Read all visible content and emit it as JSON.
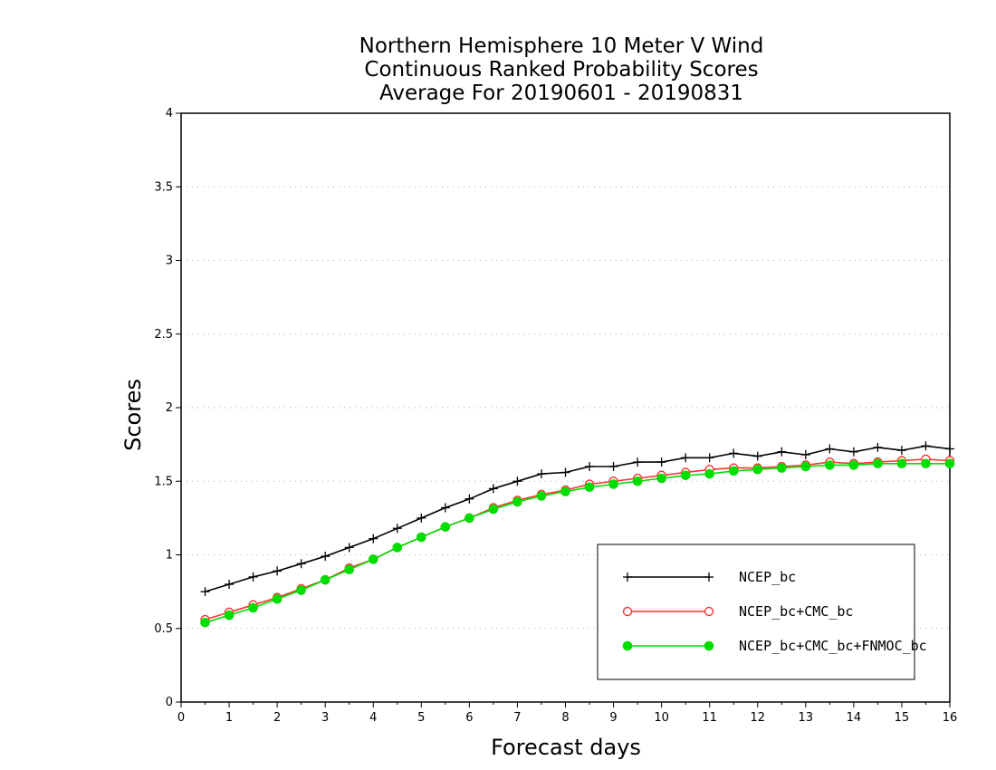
{
  "chart_data": {
    "type": "line",
    "title_lines": [
      "Northern Hemisphere 10 Meter V Wind",
      "Continuous Ranked Probability Scores",
      "Average For 20190601 - 20190831"
    ],
    "xlabel": "Forecast days",
    "ylabel": "Scores",
    "xlim": [
      0,
      16
    ],
    "ylim": [
      0,
      4
    ],
    "xticks": [
      "0",
      "1",
      "2",
      "3",
      "4",
      "5",
      "6",
      "7",
      "8",
      "9",
      "10",
      "11",
      "12",
      "13",
      "14",
      "15",
      "16"
    ],
    "yticks": [
      "0",
      "0.5",
      "1",
      "1.5",
      "2",
      "2.5",
      "3",
      "3.5",
      "4"
    ],
    "grid": "horizontal dotted",
    "legend_position": "bottom-right",
    "x": [
      0.5,
      1,
      1.5,
      2,
      2.5,
      3,
      3.5,
      4,
      4.5,
      5,
      5.5,
      6,
      6.5,
      7,
      7.5,
      8,
      8.5,
      9,
      9.5,
      10,
      10.5,
      11,
      11.5,
      12,
      12.5,
      13,
      13.5,
      14,
      14.5,
      15,
      15.5,
      16
    ],
    "series": [
      {
        "name": "NCEP_bc",
        "color": "#000000",
        "marker": "plus",
        "values": [
          0.75,
          0.8,
          0.85,
          0.89,
          0.94,
          0.99,
          1.05,
          1.11,
          1.18,
          1.25,
          1.32,
          1.38,
          1.45,
          1.5,
          1.55,
          1.56,
          1.6,
          1.6,
          1.63,
          1.63,
          1.66,
          1.66,
          1.69,
          1.67,
          1.7,
          1.68,
          1.72,
          1.7,
          1.73,
          1.71,
          1.74,
          1.72
        ]
      },
      {
        "name": "NCEP_bc+CMC_bc",
        "color": "#ff3333",
        "marker": "open-circle",
        "values": [
          0.56,
          0.61,
          0.66,
          0.71,
          0.77,
          0.83,
          0.91,
          0.97,
          1.05,
          1.12,
          1.19,
          1.25,
          1.32,
          1.37,
          1.41,
          1.44,
          1.48,
          1.5,
          1.52,
          1.54,
          1.56,
          1.58,
          1.59,
          1.59,
          1.6,
          1.61,
          1.63,
          1.62,
          1.63,
          1.64,
          1.65,
          1.64
        ]
      },
      {
        "name": "NCEP_bc+CMC_bc+FNMOC_bc",
        "color": "#00dd00",
        "marker": "filled-circle",
        "values": [
          0.54,
          0.59,
          0.64,
          0.7,
          0.76,
          0.83,
          0.9,
          0.97,
          1.05,
          1.12,
          1.19,
          1.25,
          1.31,
          1.36,
          1.4,
          1.43,
          1.46,
          1.48,
          1.5,
          1.52,
          1.54,
          1.55,
          1.57,
          1.58,
          1.59,
          1.6,
          1.61,
          1.61,
          1.62,
          1.62,
          1.62,
          1.62
        ]
      }
    ]
  }
}
